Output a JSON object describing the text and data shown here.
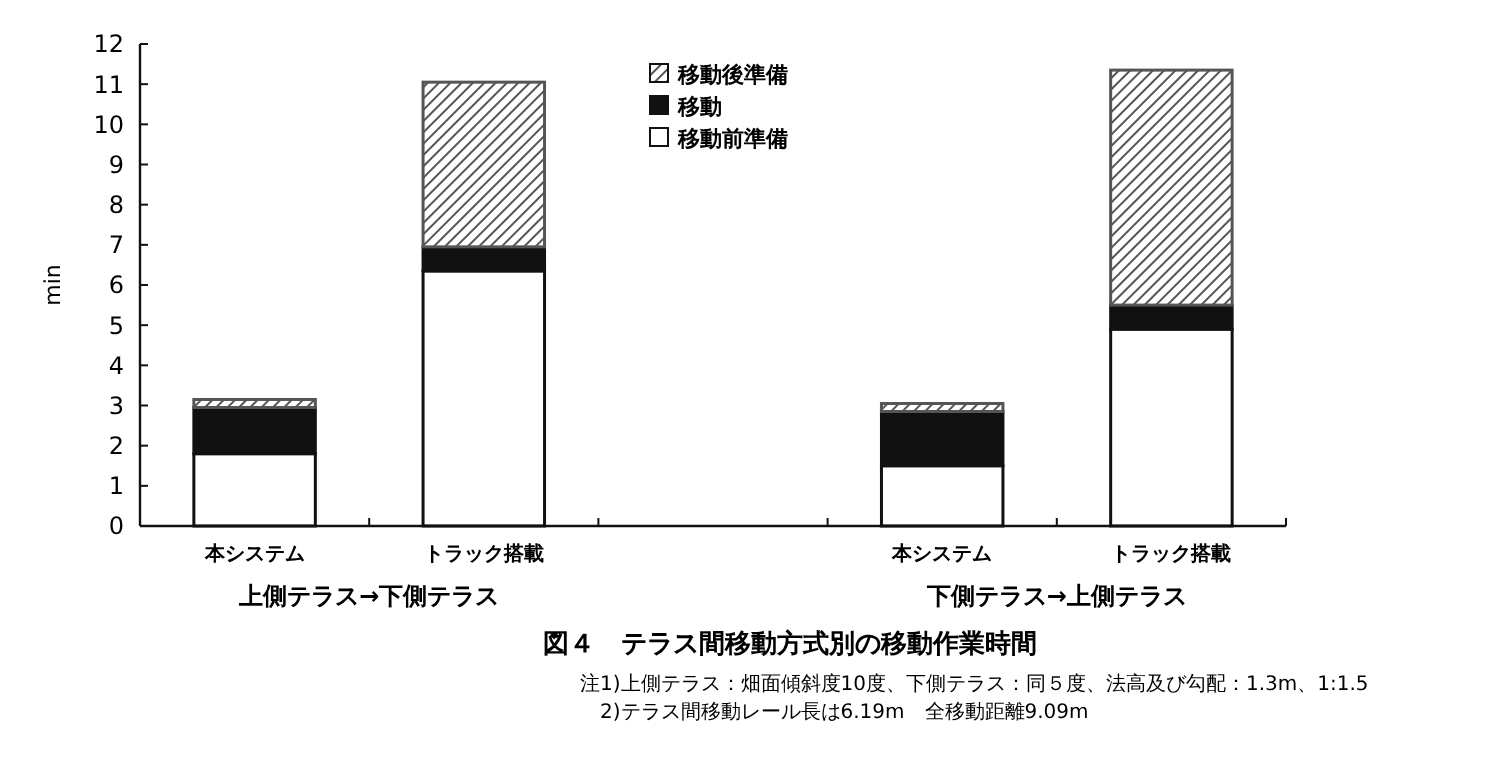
{
  "chart_data": {
    "type": "bar",
    "stacked": true,
    "title": "図４　テラス間移動方式別の移動作業時間",
    "ylabel": "min",
    "categories": [
      "本システム",
      "トラック搭載",
      null,
      "本システム",
      "トラック搭載"
    ],
    "series": [
      {
        "name": "移動前準備",
        "color": "#ffffff",
        "values": [
          1.8,
          6.35,
          null,
          1.5,
          4.9
        ]
      },
      {
        "name": "移動",
        "color": "#111111",
        "values": [
          1.15,
          0.6,
          null,
          1.35,
          0.6
        ]
      },
      {
        "name": "移動後準備",
        "color": "#555555",
        "values": [
          0.2,
          4.1,
          null,
          0.2,
          5.85
        ]
      }
    ],
    "ylim": [
      0,
      12
    ],
    "yticks": [
      0,
      1,
      2,
      3,
      4,
      5,
      6,
      7,
      8,
      9,
      10,
      11,
      12
    ],
    "grid": false,
    "legend": "top",
    "annotations": [
      "上側テラス→下側テラス",
      "下側テラス→上側テラス",
      "注1)上側テラス：畑面傾斜度10度、下側テラス：同５度、法高及び勾配：1.3m、1:1.5",
      "2)テラス間移動レール長は6.19m　全移動距離9.09m"
    ]
  }
}
